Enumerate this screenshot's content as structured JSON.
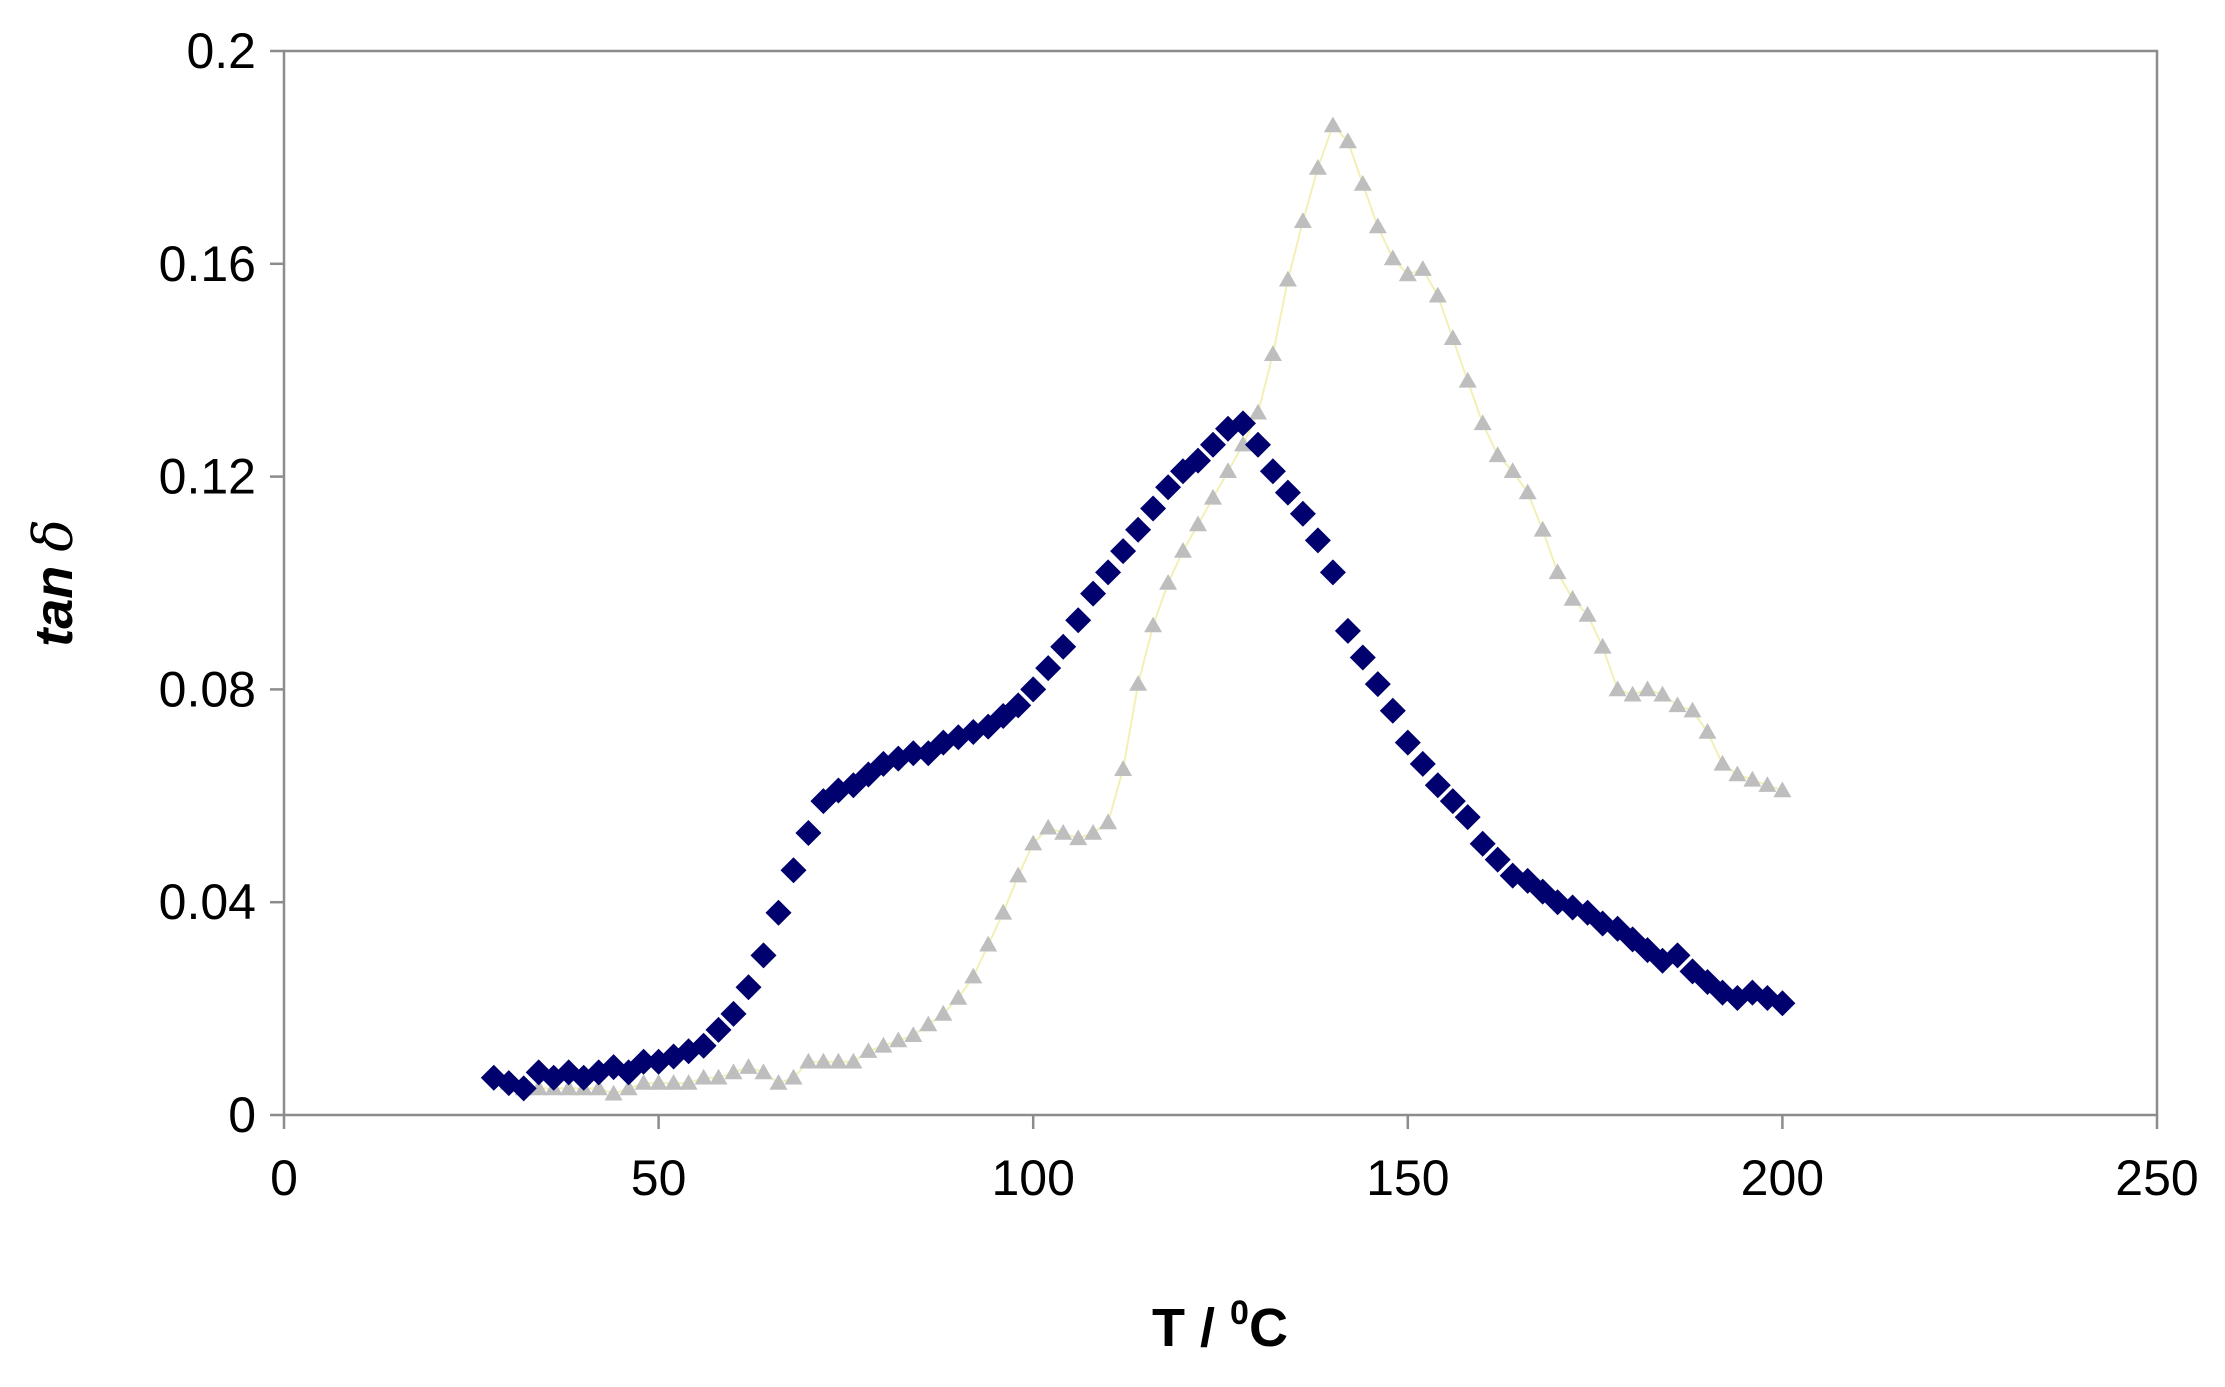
{
  "chart_data": {
    "type": "scatter",
    "title": "",
    "xlabel": "T / °C",
    "xlabel_main": "T / ",
    "xlabel_sup": "0",
    "xlabel_unit": "C",
    "ylabel": "tan δ",
    "ylabel_main": "tan",
    "ylabel_symbol": "δ",
    "xlim": [
      0,
      250
    ],
    "ylim": [
      0,
      0.2
    ],
    "x_ticks": [
      0,
      50,
      100,
      150,
      200,
      250
    ],
    "y_ticks": [
      0,
      0.04,
      0.08,
      0.12,
      0.16,
      0.2
    ],
    "x_tick_labels": [
      "0",
      "50",
      "100",
      "150",
      "200",
      "250"
    ],
    "y_tick_labels": [
      "0",
      "0.04",
      "0.08",
      "0.12",
      "0.16",
      "0.2"
    ],
    "grid": false,
    "legend": "none",
    "series": [
      {
        "marker": "diamond",
        "color": "#00006e",
        "points": [
          [
            28,
            0.007
          ],
          [
            30,
            0.006
          ],
          [
            32,
            0.005
          ],
          [
            34,
            0.008
          ],
          [
            36,
            0.007
          ],
          [
            38,
            0.008
          ],
          [
            40,
            0.007
          ],
          [
            42,
            0.008
          ],
          [
            44,
            0.009
          ],
          [
            46,
            0.008
          ],
          [
            48,
            0.01
          ],
          [
            50,
            0.01
          ],
          [
            52,
            0.011
          ],
          [
            54,
            0.012
          ],
          [
            56,
            0.013
          ],
          [
            58,
            0.016
          ],
          [
            60,
            0.019
          ],
          [
            62,
            0.024
          ],
          [
            64,
            0.03
          ],
          [
            66,
            0.038
          ],
          [
            68,
            0.046
          ],
          [
            70,
            0.053
          ],
          [
            72,
            0.059
          ],
          [
            74,
            0.061
          ],
          [
            76,
            0.062
          ],
          [
            78,
            0.064
          ],
          [
            80,
            0.066
          ],
          [
            82,
            0.067
          ],
          [
            84,
            0.068
          ],
          [
            86,
            0.068
          ],
          [
            88,
            0.07
          ],
          [
            90,
            0.071
          ],
          [
            92,
            0.072
          ],
          [
            94,
            0.073
          ],
          [
            96,
            0.075
          ],
          [
            98,
            0.077
          ],
          [
            100,
            0.08
          ],
          [
            102,
            0.084
          ],
          [
            104,
            0.088
          ],
          [
            106,
            0.093
          ],
          [
            108,
            0.098
          ],
          [
            110,
            0.102
          ],
          [
            112,
            0.106
          ],
          [
            114,
            0.11
          ],
          [
            116,
            0.114
          ],
          [
            118,
            0.118
          ],
          [
            120,
            0.121
          ],
          [
            122,
            0.123
          ],
          [
            124,
            0.126
          ],
          [
            126,
            0.129
          ],
          [
            128,
            0.13
          ],
          [
            130,
            0.126
          ],
          [
            132,
            0.121
          ],
          [
            134,
            0.117
          ],
          [
            136,
            0.113
          ],
          [
            138,
            0.108
          ],
          [
            140,
            0.102
          ],
          [
            142,
            0.091
          ],
          [
            144,
            0.086
          ],
          [
            146,
            0.081
          ],
          [
            148,
            0.076
          ],
          [
            150,
            0.07
          ],
          [
            152,
            0.066
          ],
          [
            154,
            0.062
          ],
          [
            156,
            0.059
          ],
          [
            158,
            0.056
          ],
          [
            160,
            0.051
          ],
          [
            162,
            0.048
          ],
          [
            164,
            0.045
          ],
          [
            166,
            0.044
          ],
          [
            168,
            0.042
          ],
          [
            170,
            0.04
          ],
          [
            172,
            0.039
          ],
          [
            174,
            0.038
          ],
          [
            176,
            0.036
          ],
          [
            178,
            0.035
          ],
          [
            180,
            0.033
          ],
          [
            182,
            0.031
          ],
          [
            184,
            0.029
          ],
          [
            186,
            0.03
          ],
          [
            188,
            0.027
          ],
          [
            190,
            0.025
          ],
          [
            192,
            0.023
          ],
          [
            194,
            0.022
          ],
          [
            196,
            0.023
          ],
          [
            198,
            0.022
          ],
          [
            200,
            0.021
          ]
        ]
      },
      {
        "marker": "triangle",
        "color": "#bebebe",
        "points": [
          [
            30,
            0.006
          ],
          [
            32,
            0.005
          ],
          [
            34,
            0.005
          ],
          [
            36,
            0.005
          ],
          [
            38,
            0.005
          ],
          [
            40,
            0.005
          ],
          [
            42,
            0.005
          ],
          [
            44,
            0.004
          ],
          [
            46,
            0.005
          ],
          [
            48,
            0.006
          ],
          [
            50,
            0.006
          ],
          [
            52,
            0.006
          ],
          [
            54,
            0.006
          ],
          [
            56,
            0.007
          ],
          [
            58,
            0.007
          ],
          [
            60,
            0.008
          ],
          [
            62,
            0.009
          ],
          [
            64,
            0.008
          ],
          [
            66,
            0.006
          ],
          [
            68,
            0.007
          ],
          [
            70,
            0.01
          ],
          [
            72,
            0.01
          ],
          [
            74,
            0.01
          ],
          [
            76,
            0.01
          ],
          [
            78,
            0.012
          ],
          [
            80,
            0.013
          ],
          [
            82,
            0.014
          ],
          [
            84,
            0.015
          ],
          [
            86,
            0.017
          ],
          [
            88,
            0.019
          ],
          [
            90,
            0.022
          ],
          [
            92,
            0.026
          ],
          [
            94,
            0.032
          ],
          [
            96,
            0.038
          ],
          [
            98,
            0.045
          ],
          [
            100,
            0.051
          ],
          [
            102,
            0.054
          ],
          [
            104,
            0.053
          ],
          [
            106,
            0.052
          ],
          [
            108,
            0.053
          ],
          [
            110,
            0.055
          ],
          [
            112,
            0.065
          ],
          [
            114,
            0.081
          ],
          [
            116,
            0.092
          ],
          [
            118,
            0.1
          ],
          [
            120,
            0.106
          ],
          [
            122,
            0.111
          ],
          [
            124,
            0.116
          ],
          [
            126,
            0.121
          ],
          [
            128,
            0.126
          ],
          [
            130,
            0.132
          ],
          [
            132,
            0.143
          ],
          [
            134,
            0.157
          ],
          [
            136,
            0.168
          ],
          [
            138,
            0.178
          ],
          [
            140,
            0.186
          ],
          [
            142,
            0.183
          ],
          [
            144,
            0.175
          ],
          [
            146,
            0.167
          ],
          [
            148,
            0.161
          ],
          [
            150,
            0.158
          ],
          [
            152,
            0.159
          ],
          [
            154,
            0.154
          ],
          [
            156,
            0.146
          ],
          [
            158,
            0.138
          ],
          [
            160,
            0.13
          ],
          [
            162,
            0.124
          ],
          [
            164,
            0.121
          ],
          [
            166,
            0.117
          ],
          [
            168,
            0.11
          ],
          [
            170,
            0.102
          ],
          [
            172,
            0.097
          ],
          [
            174,
            0.094
          ],
          [
            176,
            0.088
          ],
          [
            178,
            0.08
          ],
          [
            180,
            0.079
          ],
          [
            182,
            0.08
          ],
          [
            184,
            0.079
          ],
          [
            186,
            0.077
          ],
          [
            188,
            0.076
          ],
          [
            190,
            0.072
          ],
          [
            192,
            0.066
          ],
          [
            194,
            0.064
          ],
          [
            196,
            0.063
          ],
          [
            198,
            0.062
          ],
          [
            200,
            0.061
          ]
        ]
      }
    ]
  }
}
